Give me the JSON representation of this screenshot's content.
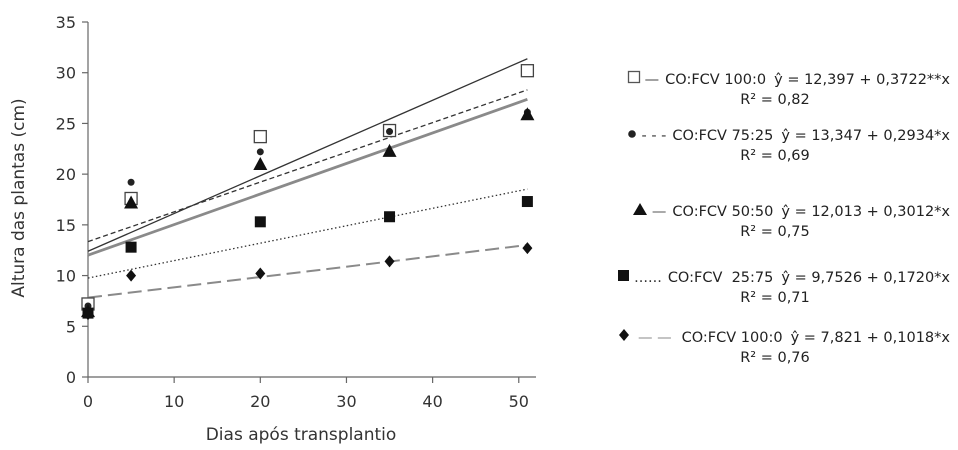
{
  "chart_data": {
    "type": "scatter",
    "xlabel": "Dias após transplantio",
    "ylabel": "Altura das plantas (cm)",
    "xlim": [
      0,
      52
    ],
    "ylim": [
      0,
      35
    ],
    "xticks": [
      0,
      10,
      20,
      30,
      40,
      50
    ],
    "yticks": [
      0,
      5,
      10,
      15,
      20,
      25,
      30,
      35
    ],
    "xtick_labels": [
      "0",
      "10",
      "20",
      "30",
      "40",
      "50"
    ],
    "ytick_labels": [
      "0",
      "5",
      "10",
      "15",
      "20",
      "25",
      "30",
      "35"
    ],
    "grid": false,
    "legend_position": "right",
    "series": [
      {
        "name": "CO:FCV 100:0",
        "marker": "open-square",
        "line_style": "solid-thin",
        "color": "#333333",
        "x": [
          0,
          5,
          20,
          35,
          51
        ],
        "y": [
          7.2,
          17.6,
          23.7,
          24.3,
          30.2
        ],
        "fit": {
          "intercept": 12.397,
          "slope": 0.3722
        },
        "equation": "ŷ = 12,397 + 0,3722**x",
        "r2": "R² = 0,82"
      },
      {
        "name": "CO:FCV 75:25",
        "marker": "circle",
        "line_style": "dashed-short",
        "color": "#222222",
        "x": [
          0,
          5,
          20,
          35,
          51
        ],
        "y": [
          7.0,
          19.2,
          22.2,
          24.2,
          26.1
        ],
        "fit": {
          "intercept": 13.347,
          "slope": 0.2934
        },
        "equation": "ŷ = 13,347 + 0,2934*x",
        "r2": "R² = 0,69"
      },
      {
        "name": "CO:FCV 50:50",
        "marker": "triangle",
        "line_style": "solid-thick-gray",
        "color": "#8a8a8a",
        "x": [
          0,
          5,
          20,
          35,
          51
        ],
        "y": [
          6.5,
          17.2,
          21.0,
          22.3,
          25.9
        ],
        "fit": {
          "intercept": 12.013,
          "slope": 0.3012
        },
        "equation": "ŷ = 12,013 + 0,3012*x",
        "r2": "R² = 0,75"
      },
      {
        "name": "CO:FCV  25:75",
        "marker": "square",
        "line_style": "dotted",
        "color": "#222222",
        "x": [
          0,
          5,
          20,
          35,
          51
        ],
        "y": [
          6.3,
          12.8,
          15.3,
          15.8,
          17.3
        ],
        "fit": {
          "intercept": 9.7526,
          "slope": 0.172
        },
        "equation": "ŷ = 9,7526 + 0,1720*x",
        "r2": "R² = 0,71"
      },
      {
        "name": "CO:FCV 100:0",
        "marker": "diamond",
        "line_style": "long-dash-gray",
        "color": "#8a8a8a",
        "x": [
          0,
          5,
          20,
          35,
          51
        ],
        "y": [
          6.2,
          10.0,
          10.2,
          11.4,
          12.7
        ],
        "fit": {
          "intercept": 7.821,
          "slope": 0.1018
        },
        "equation": "ŷ = 7,821 + 0,1018*x",
        "r2": "R² = 0,76"
      }
    ]
  },
  "legend": {
    "entries": [
      {
        "line_glyph": "—",
        "name": "CO:FCV 100:0",
        "equation": "ŷ = 12,397 + 0,3722**x",
        "r2": "R² = 0,82"
      },
      {
        "line_glyph": "- - -",
        "name": "CO:FCV 75:25",
        "equation": "ŷ = 13,347 + 0,2934*x",
        "r2": "R² = 0,69"
      },
      {
        "line_glyph": "—",
        "name": "CO:FCV 50:50",
        "equation": "ŷ = 12,013 + 0,3012*x",
        "r2": "R² = 0,75"
      },
      {
        "line_glyph": "......",
        "name": "CO:FCV  25:75",
        "equation": "ŷ = 9,7526 + 0,1720*x",
        "r2": "R² = 0,71"
      },
      {
        "line_glyph": "— —",
        "name": "CO:FCV 100:0",
        "equation": "ŷ = 7,821 + 0,1018*x",
        "r2": "R² = 0,76"
      }
    ]
  }
}
